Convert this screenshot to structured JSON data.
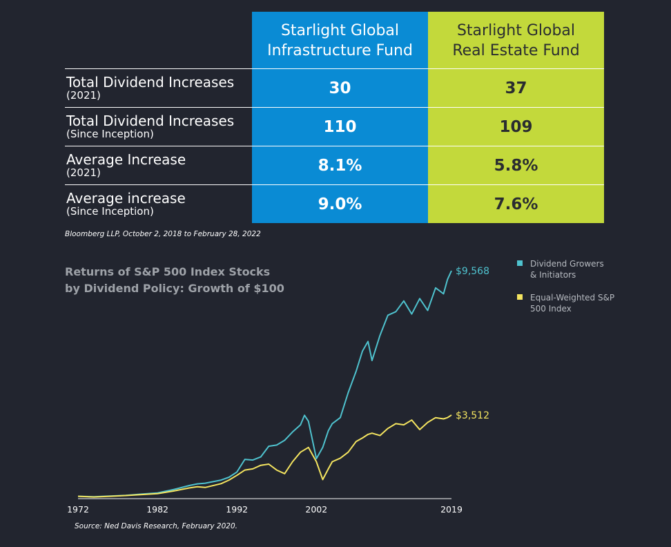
{
  "table": {
    "headers": [
      {
        "line1": "Starlight Global",
        "line2": "Infrastructure Fund"
      },
      {
        "line1": "Starlight Global",
        "line2": "Real Estate Fund"
      }
    ],
    "rows": [
      {
        "label": "Total Dividend Increases",
        "sub": "(2021)",
        "infrastructure": "30",
        "real_estate": "37"
      },
      {
        "label": "Total Dividend Increases",
        "sub": "(Since Inception)",
        "infrastructure": "110",
        "real_estate": "109"
      },
      {
        "label": "Average Increase",
        "sub": "(2021)",
        "infrastructure": "8.1%",
        "real_estate": "5.8%"
      },
      {
        "label": "Average increase",
        "sub": "(Since Inception)",
        "infrastructure": "9.0%",
        "real_estate": "7.6%"
      }
    ],
    "source_note": "Bloomberg LLP, October 2, 2018 to February 28, 2022"
  },
  "chart_data": {
    "type": "line",
    "title": "Returns of S&P 500 Index Stocks by Dividend Policy: Growth of $100",
    "title_lines": [
      "Returns of S&P 500 Index Stocks",
      "by Dividend Policy: Growth of $100"
    ],
    "xlabel": "",
    "ylabel": "",
    "x_ticks": [
      "1972",
      "1982",
      "1992",
      "2002",
      "2019"
    ],
    "xlim": [
      1972,
      2019
    ],
    "ylim": [
      0,
      9568
    ],
    "grid": false,
    "legend_position": "top-right",
    "series": [
      {
        "name": "Dividend Growers & Initiators",
        "legend_line1": "Dividend Growers",
        "legend_line2": "& Initiators",
        "color": "#4fc3cf",
        "end_label": "$9,568",
        "x": [
          1972,
          1974,
          1976,
          1978,
          1980,
          1982,
          1984,
          1986,
          1987,
          1988,
          1990,
          1991,
          1992,
          1993,
          1994,
          1995,
          1996,
          1997,
          1998,
          1999,
          2000,
          2000.5,
          2001,
          2002,
          2002.8,
          2003.5,
          2004,
          2005,
          2006,
          2007,
          2007.8,
          2008.5,
          2009,
          2010,
          2011,
          2012,
          2013,
          2014,
          2015,
          2016,
          2017,
          2018,
          2018.5,
          2019
        ],
        "values": [
          100,
          80,
          110,
          140,
          190,
          240,
          380,
          550,
          620,
          650,
          780,
          900,
          1120,
          1650,
          1620,
          1750,
          2200,
          2250,
          2450,
          2800,
          3100,
          3500,
          3250,
          1680,
          2150,
          2850,
          3150,
          3400,
          4450,
          5350,
          6200,
          6600,
          5800,
          6850,
          7700,
          7850,
          8300,
          7750,
          8400,
          7900,
          8850,
          8600,
          9200,
          9568
        ]
      },
      {
        "name": "Equal-Weighted S&P 500 Index",
        "legend_line1": "Equal-Weighted S&P",
        "legend_line2": "500 Index",
        "color": "#f5e560",
        "end_label": "$3,512",
        "x": [
          1972,
          1974,
          1976,
          1978,
          1980,
          1982,
          1984,
          1986,
          1987,
          1988,
          1990,
          1991,
          1992,
          1993,
          1994,
          1995,
          1996,
          1997,
          1998,
          1999,
          2000,
          2001,
          2002,
          2002.8,
          2003.5,
          2004,
          2005,
          2006,
          2007,
          2007.8,
          2008.5,
          2009,
          2010,
          2011,
          2012,
          2013,
          2014,
          2015,
          2016,
          2017,
          2018,
          2018.5,
          2019
        ],
        "values": [
          100,
          70,
          100,
          130,
          170,
          210,
          320,
          450,
          500,
          470,
          630,
          780,
          980,
          1200,
          1250,
          1400,
          1450,
          1200,
          1050,
          1550,
          1950,
          2150,
          1550,
          800,
          1250,
          1550,
          1700,
          1950,
          2400,
          2550,
          2700,
          2750,
          2650,
          2950,
          3150,
          3100,
          3300,
          2900,
          3200,
          3400,
          3350,
          3400,
          3512
        ]
      }
    ],
    "source_note": "Source: Ned Davis Research, February 2020."
  }
}
